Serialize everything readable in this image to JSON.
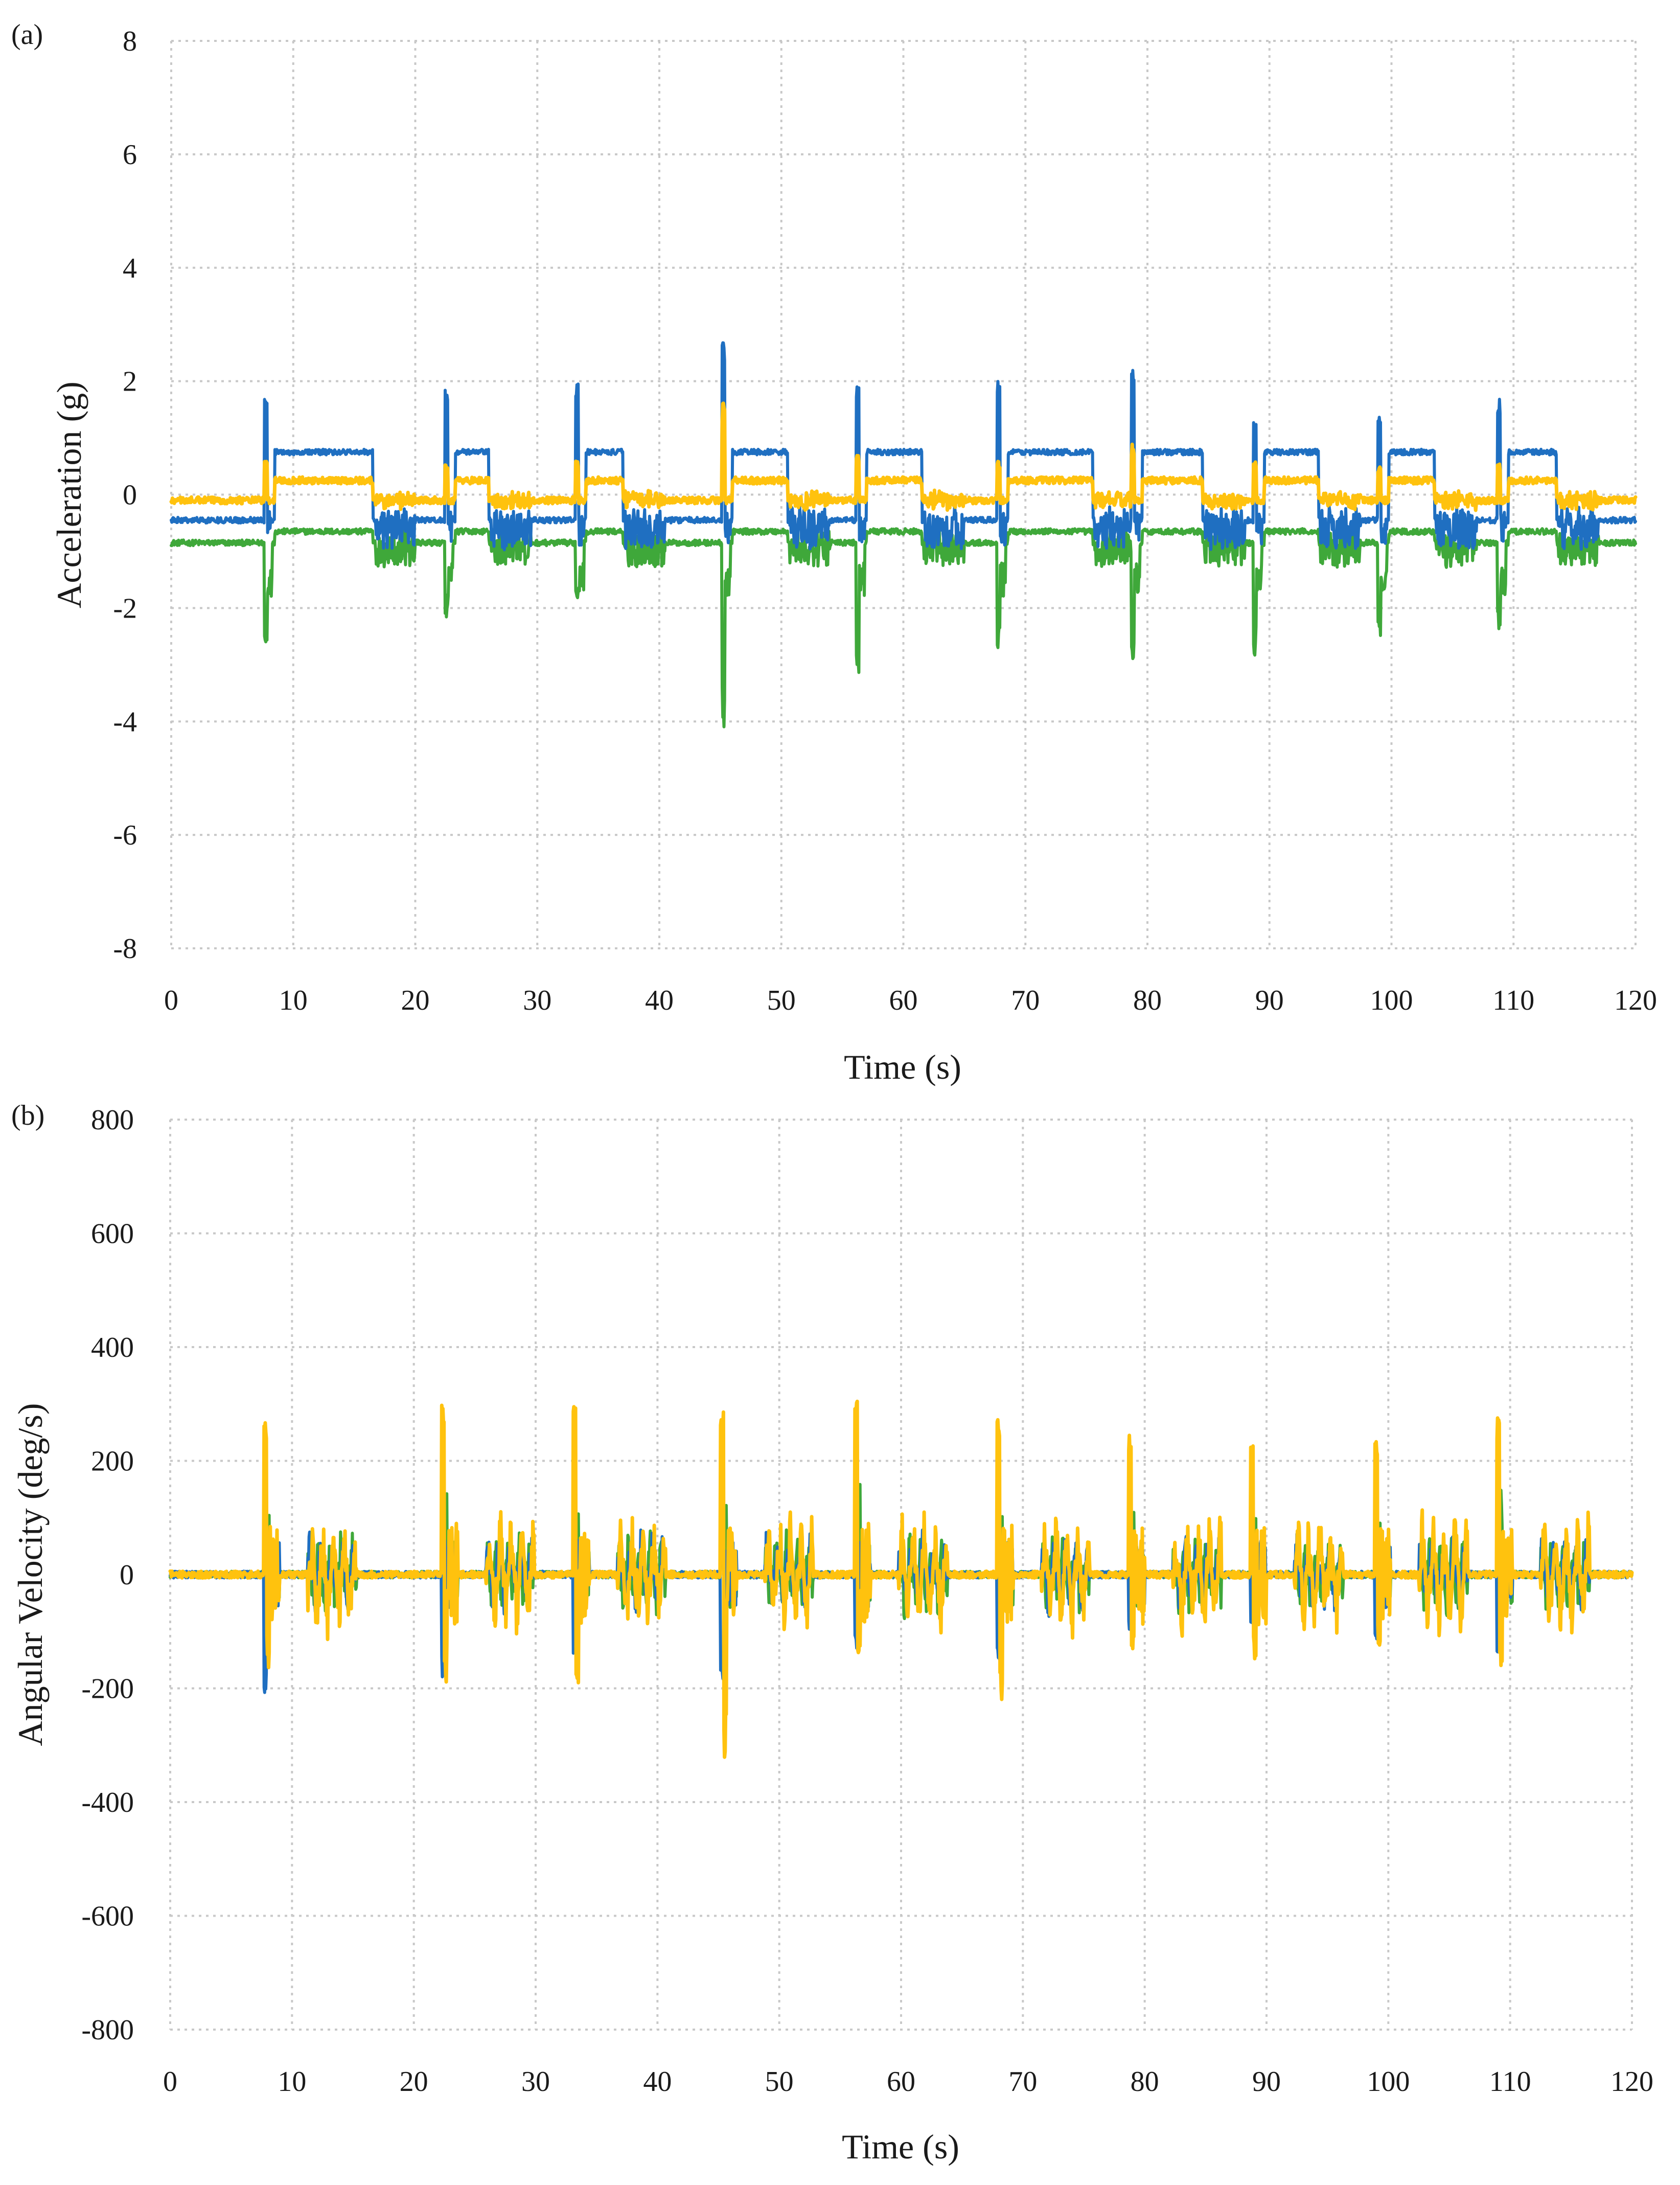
{
  "colors": {
    "blue": "#1f6fc1",
    "green": "#3fa83a",
    "yellow": "#ffc20e",
    "text": "#1a1a1a",
    "grid": "#c8c8c8"
  },
  "chart_data": [
    {
      "panel": "(a)",
      "type": "line",
      "xlabel": "Time (s)",
      "ylabel": "Acceleration (g)",
      "xlim": [
        0,
        120
      ],
      "ylim": [
        -8,
        8
      ],
      "xticks": [
        0,
        10,
        20,
        30,
        40,
        50,
        60,
        70,
        80,
        90,
        100,
        110,
        120
      ],
      "yticks": [
        -8,
        -6,
        -4,
        -2,
        0,
        2,
        4,
        6,
        8
      ],
      "grid": true,
      "legend": "none",
      "cycles": [
        {
          "start": 7.7,
          "end": 17,
          "peak_blue": 1.8,
          "min_green": -2.8,
          "peak_yellow": 0.6
        },
        {
          "start": 22.5,
          "end": 26.5,
          "peak_blue": 1.9,
          "min_green": -2.2,
          "peak_yellow": 0.6
        },
        {
          "start": 33.2,
          "end": 37.5,
          "peak_blue": 2.0,
          "min_green": -2.0,
          "peak_yellow": 0.6
        },
        {
          "start": 45.2,
          "end": 51,
          "peak_blue": 2.8,
          "min_green": -4.1,
          "peak_yellow": 1.8
        },
        {
          "start": 56.2,
          "end": 62,
          "peak_blue": 1.9,
          "min_green": -3.2,
          "peak_yellow": 0.7
        },
        {
          "start": 67.8,
          "end": 76,
          "peak_blue": 2.0,
          "min_green": -2.9,
          "peak_yellow": 0.6
        },
        {
          "start": 78.8,
          "end": 85,
          "peak_blue": 2.3,
          "min_green": -3.0,
          "peak_yellow": 0.9
        },
        {
          "start": 88.8,
          "end": 94.5,
          "peak_blue": 1.3,
          "min_green": -2.9,
          "peak_yellow": 0.6
        },
        {
          "start": 99.0,
          "end": 104,
          "peak_blue": 1.4,
          "min_green": -2.5,
          "peak_yellow": 0.5
        },
        {
          "start": 108.8,
          "end": 114,
          "peak_blue": 1.7,
          "min_green": -2.5,
          "peak_yellow": 0.6
        }
      ],
      "series": [
        {
          "name": "blue",
          "color": "#1f6fc1",
          "rest_level": -0.45,
          "active_level": 0.75
        },
        {
          "name": "green",
          "color": "#3fa83a",
          "rest_level": -0.85,
          "active_level": -0.65
        },
        {
          "name": "yellow",
          "color": "#ffc20e",
          "rest_level": -0.1,
          "active_level": 0.25
        }
      ]
    },
    {
      "panel": "(b)",
      "type": "line",
      "xlabel": "Time (s)",
      "ylabel": "Angular Velocity (deg/s)",
      "xlim": [
        0,
        120
      ],
      "ylim": [
        -800,
        800
      ],
      "xticks": [
        0,
        10,
        20,
        30,
        40,
        50,
        60,
        70,
        80,
        90,
        100,
        110,
        120
      ],
      "yticks": [
        -800,
        -600,
        -400,
        -200,
        0,
        200,
        400,
        600,
        800
      ],
      "grid": true,
      "legend": "none",
      "spikes": [
        {
          "t": 7.8,
          "yellow_max": 270,
          "yellow_min": -170,
          "blue_min": -210,
          "green_max": 120
        },
        {
          "t": 22.4,
          "yellow_max": 300,
          "yellow_min": -190,
          "blue_min": -180,
          "green_max": 150
        },
        {
          "t": 33.2,
          "yellow_max": 300,
          "yellow_min": -200,
          "blue_min": -140,
          "green_max": 110
        },
        {
          "t": 45.3,
          "yellow_max": 290,
          "yellow_min": -335,
          "blue_min": -185,
          "green_max": 140
        },
        {
          "t": 56.3,
          "yellow_max": 305,
          "yellow_min": -140,
          "blue_min": -130,
          "green_max": 175
        },
        {
          "t": 68.0,
          "yellow_max": 280,
          "yellow_min": -240,
          "blue_min": -150,
          "green_max": 120
        },
        {
          "t": 78.8,
          "yellow_max": 245,
          "yellow_min": -160,
          "blue_min": -100,
          "green_max": 110
        },
        {
          "t": 88.8,
          "yellow_max": 230,
          "yellow_min": -150,
          "blue_min": -90,
          "green_max": 100
        },
        {
          "t": 99.0,
          "yellow_max": 245,
          "yellow_min": -140,
          "blue_min": -120,
          "green_max": 110
        },
        {
          "t": 109.0,
          "yellow_max": 280,
          "yellow_min": -170,
          "blue_min": -140,
          "green_max": 150
        }
      ],
      "series": [
        {
          "name": "blue",
          "color": "#1f6fc1"
        },
        {
          "name": "green",
          "color": "#3fa83a"
        },
        {
          "name": "yellow",
          "color": "#ffc20e"
        }
      ]
    }
  ]
}
